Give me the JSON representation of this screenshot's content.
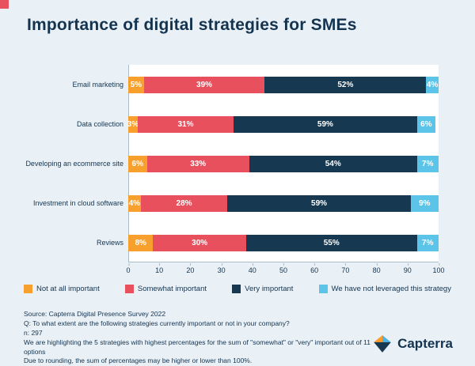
{
  "title": "Importance of digital strategies for SMEs",
  "colors": {
    "background": "#e9f1f7",
    "accent_red": "#e9505e",
    "text": "#14334f",
    "axis": "#a9bcc7"
  },
  "chart_data": {
    "type": "bar",
    "orientation": "horizontal",
    "stacked": true,
    "title": "Importance of digital strategies for SMEs",
    "categories": [
      "Email marketing",
      "Data collection",
      "Developing an ecommerce site",
      "Investment in cloud software",
      "Reviews"
    ],
    "series": [
      {
        "name": "Not at all important",
        "color": "#f8a02d",
        "values": [
          5,
          3,
          6,
          4,
          8
        ]
      },
      {
        "name": "Somewhat important",
        "color": "#e9505e",
        "values": [
          39,
          31,
          33,
          28,
          30
        ]
      },
      {
        "name": "Very important",
        "color": "#173851",
        "values": [
          52,
          59,
          54,
          59,
          55
        ]
      },
      {
        "name": "We have not leveraged this strategy",
        "color": "#5bc4e8",
        "values": [
          4,
          6,
          7,
          9,
          7
        ]
      }
    ],
    "value_suffix": "%",
    "xlim": [
      0,
      100
    ],
    "x_ticks": [
      0,
      10,
      20,
      30,
      40,
      50,
      60,
      70,
      80,
      90,
      100
    ],
    "grid": false,
    "legend_position": "bottom"
  },
  "footer": {
    "lines": [
      "Source: Capterra Digital Presence Survey 2022",
      "Q: To what extent are the following strategies currently important or not in your company?",
      "n: 297",
      "We are highlighting the 5 strategies with highest percentages for the sum of \"somewhat\" or \"very\" important out of 11 options",
      "Due to rounding, the sum of percentages may be higher or lower than 100%."
    ]
  },
  "brand": {
    "name": "Capterra"
  }
}
